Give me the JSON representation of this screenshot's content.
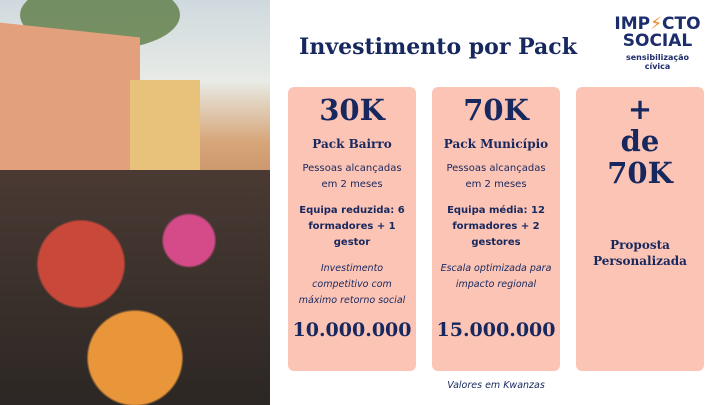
{
  "title": "Investimento por Pack",
  "logo": {
    "line1_a": "IMP",
    "line1_b": "CTO",
    "line2": "SOCIAL",
    "tagline1": "sensibilização",
    "tagline2": "cívica"
  },
  "packs": [
    {
      "amount": "30K",
      "name": "Pack Bairro",
      "reach": "Pessoas alcançadas em 2 meses",
      "team": "Equipa reduzida: 6 formadores + 1 gestor",
      "note": "Investimento competitivo com máximo retorno social",
      "price": "10.000.000"
    },
    {
      "amount": "70K",
      "name": "Pack Município",
      "reach": "Pessoas alcançadas em 2 meses",
      "team": "Equipa média: 12 formadores + 2 gestores",
      "note": "Escala optimizada para impacto regional",
      "price": "15.000.000"
    },
    {
      "amount_l1": "+",
      "amount_l2": "de",
      "amount_l3": "70K",
      "name": "Proposta Personalizada"
    }
  ],
  "footer": "Valores em Kwanzas",
  "colors": {
    "card": "#fcc4b5",
    "text": "#17285e",
    "accent": "#f08a24"
  }
}
